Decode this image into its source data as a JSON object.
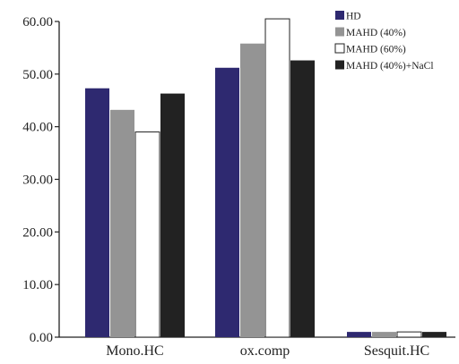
{
  "chart_data": {
    "type": "bar",
    "title": "",
    "xlabel": "",
    "ylabel": "",
    "ylim": [
      0,
      60
    ],
    "yticks": [
      "0.00",
      "10.00",
      "20.00",
      "30.00",
      "40.00",
      "50.00",
      "60.00"
    ],
    "categories": [
      "Mono.HC",
      "ox.comp",
      "Sesquit.HC"
    ],
    "series": [
      {
        "name": "HD",
        "color": "#2e2970",
        "values": [
          47.3,
          51.2,
          1.0
        ]
      },
      {
        "name": "MAHD (40%)",
        "color": "#949494",
        "values": [
          43.2,
          55.8,
          1.0
        ]
      },
      {
        "name": "MAHD (60%)",
        "color": "#ffffff",
        "values": [
          39.0,
          60.5,
          1.0
        ]
      },
      {
        "name": "MAHD (40%)+NaCl",
        "color": "#222222",
        "values": [
          46.3,
          52.6,
          1.0
        ]
      }
    ],
    "legend_position": "top-right",
    "grid": false
  }
}
